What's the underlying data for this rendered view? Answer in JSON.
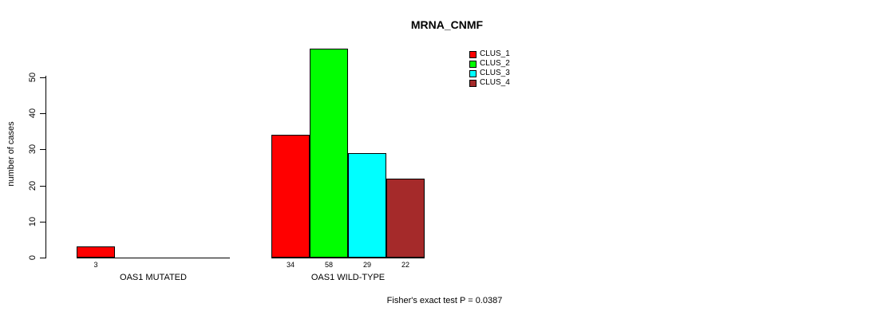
{
  "chart_data": {
    "type": "bar",
    "title": "MRNA_CNMF",
    "ylabel": "number of cases",
    "xlabel": "",
    "ylim": [
      0,
      58
    ],
    "yticks": [
      0,
      10,
      20,
      30,
      40,
      50
    ],
    "grid": false,
    "legend_position": "top-right",
    "categories": [
      "OAS1 MUTATED",
      "OAS1 WILD-TYPE"
    ],
    "series": [
      {
        "name": "CLUS_1",
        "color": "#FF0000",
        "values": [
          3,
          34
        ]
      },
      {
        "name": "CLUS_2",
        "color": "#00FF00",
        "values": [
          0,
          58
        ]
      },
      {
        "name": "CLUS_3",
        "color": "#00FFFF",
        "values": [
          0,
          29
        ]
      },
      {
        "name": "CLUS_4",
        "color": "#A52A2A",
        "values": [
          0,
          22
        ]
      }
    ],
    "bar_value_labels": [
      "3",
      "34",
      "58",
      "29",
      "22"
    ],
    "annotation": "Fisher's exact test P = 0.0387"
  }
}
